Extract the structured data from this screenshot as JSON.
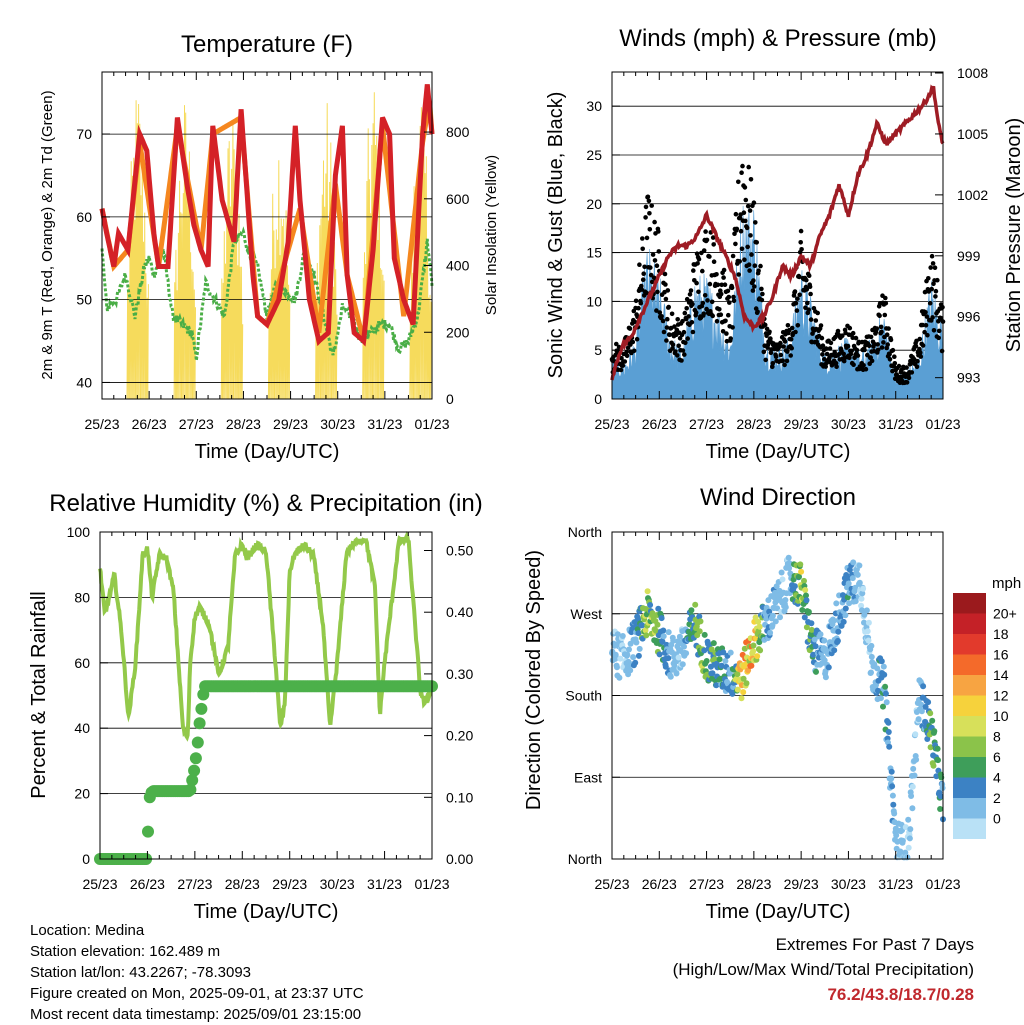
{
  "info": {
    "location": "Location: Medina",
    "elevation": "Station elevation: 162.489 m",
    "latlon": "Station lat/lon: 43.2267; -78.3093",
    "created": "Figure created on Mon, 2025-09-01, at 23:37 UTC",
    "recent": "Most recent data timestamp: 2025/09/01 23:15:00"
  },
  "extremes": {
    "title": "Extremes For Past 7 Days",
    "subtitle": "(High/Low/Max Wind/Total Precipitation)",
    "values": "76.2/43.8/18.7/0.28"
  },
  "colors": {
    "red": "#d42127",
    "orange": "#f5871f",
    "green": "#4aae46",
    "yellow": "#f6db5c",
    "blue": "#5a9fd4",
    "black": "#000000",
    "maroon": "#9e1c24",
    "rh_green": "#93c94a",
    "precip_green": "#4cb04a"
  },
  "chart_data": [
    {
      "type": "line",
      "title": "Temperature (F)",
      "xlabel": "Time (Day/UTC)",
      "ylabel": "2m & 9m T (Red, Orange) & 2m Td (Green)",
      "y2label": "Solar Insolation (Yellow)",
      "x_ticks": [
        "25/23",
        "26/23",
        "27/23",
        "28/23",
        "29/23",
        "30/23",
        "31/23",
        "01/23"
      ],
      "ylim": [
        38,
        77.5
      ],
      "y_ticks": [
        40,
        50,
        60,
        70
      ],
      "y2lim": [
        0,
        980
      ],
      "y2_ticks": [
        0,
        200,
        400,
        600,
        800
      ],
      "grid": true,
      "series": [
        {
          "name": "2m T",
          "color": "red",
          "x": [
            0,
            0.1,
            0.25,
            0.35,
            0.55,
            0.8,
            0.95,
            1.1,
            1.2,
            1.4,
            1.6,
            1.8,
            1.95,
            2.1,
            2.25,
            2.35,
            2.55,
            2.8,
            2.95,
            3.1,
            3.2,
            3.3,
            3.5,
            3.75,
            3.95,
            4.1,
            4.2,
            4.4,
            4.6,
            4.8,
            4.95,
            5.1,
            5.2,
            5.35,
            5.55,
            5.75,
            5.95,
            6.1,
            6.2,
            6.4,
            6.6,
            6.8,
            6.9,
            6.95,
            7.0
          ],
          "values": [
            61,
            58,
            54,
            58,
            56,
            70,
            68,
            58,
            54,
            54,
            72,
            64,
            59,
            56,
            54,
            71,
            62,
            57,
            73,
            61,
            53,
            48,
            47,
            50,
            57,
            71,
            62,
            50,
            45,
            46,
            65,
            71,
            53,
            46,
            45,
            56,
            72,
            70,
            55,
            50,
            47,
            70,
            76,
            73,
            70
          ]
        },
        {
          "name": "9m T",
          "color": "orange",
          "x": [
            0,
            0.25,
            0.55,
            0.8,
            1.2,
            1.6,
            2.1,
            2.35,
            2.95,
            3.3,
            3.5,
            3.95,
            4.2,
            4.6,
            4.95,
            5.2,
            5.55,
            5.95,
            6.4,
            6.8,
            6.95,
            7.0
          ],
          "values": [
            61,
            54,
            56,
            69,
            54,
            71,
            56,
            70,
            72,
            48,
            47,
            56,
            61,
            46,
            64,
            53,
            45,
            71,
            48,
            69,
            74,
            70
          ]
        },
        {
          "name": "2m Td",
          "color": "green",
          "x": [
            0,
            0.1,
            0.3,
            0.5,
            0.7,
            0.9,
            1.0,
            1.1,
            1.3,
            1.5,
            1.7,
            1.9,
            2.0,
            2.2,
            2.4,
            2.6,
            2.8,
            3.0,
            3.1,
            3.3,
            3.5,
            3.7,
            3.9,
            4.1,
            4.3,
            4.5,
            4.7,
            4.9,
            5.1,
            5.3,
            5.5,
            5.7,
            5.9,
            6.1,
            6.3,
            6.5,
            6.7,
            6.9,
            7.0
          ],
          "values": [
            56,
            49,
            50,
            53,
            48,
            54,
            55,
            53,
            56,
            48,
            47,
            46,
            43,
            52,
            50,
            48,
            57,
            58,
            56,
            54,
            48,
            52,
            51,
            50,
            56,
            53,
            48,
            43,
            49,
            48,
            45,
            46,
            47,
            47,
            44,
            45,
            48,
            57,
            52
          ]
        },
        {
          "name": "Solar Insolation",
          "color": "yellow",
          "axis": "y2",
          "peaks": [
            {
              "day": 0.75,
              "value": 970
            },
            {
              "day": 1.75,
              "value": 920
            },
            {
              "day": 2.75,
              "value": 900
            },
            {
              "day": 3.75,
              "value": 860
            },
            {
              "day": 4.75,
              "value": 910
            },
            {
              "day": 5.75,
              "value": 990
            },
            {
              "day": 6.75,
              "value": 960
            }
          ]
        }
      ]
    },
    {
      "type": "scatter",
      "title": "Winds (mph) & Pressure (mb)",
      "xlabel": "Time (Day/UTC)",
      "ylabel": "Sonic Wind & Gust (Blue, Black)",
      "y2label": "Station Pressure (Maroon)",
      "x_ticks": [
        "25/23",
        "26/23",
        "27/23",
        "28/23",
        "29/23",
        "30/23",
        "31/23",
        "01/23"
      ],
      "ylim": [
        0,
        33.5
      ],
      "y_ticks": [
        0,
        5,
        10,
        15,
        20,
        25,
        30
      ],
      "y2lim": [
        991.95,
        1008.05
      ],
      "y2_ticks": [
        993,
        996,
        999,
        1002,
        1005,
        1008
      ],
      "grid": true,
      "series": [
        {
          "name": "Sonic Wind",
          "color": "blue",
          "x": [
            0,
            0.25,
            0.5,
            0.75,
            1.0,
            1.25,
            1.5,
            1.75,
            2.0,
            2.25,
            2.5,
            2.75,
            3.0,
            3.25,
            3.5,
            3.75,
            4.0,
            4.25,
            4.5,
            4.75,
            5.0,
            5.25,
            5.5,
            5.75,
            6.0,
            6.25,
            6.5,
            6.75,
            7.0
          ],
          "values": [
            3,
            2.5,
            4,
            10,
            8,
            4,
            3.5,
            8,
            8,
            6,
            4,
            13,
            13,
            4,
            3.5,
            4,
            9,
            6,
            3,
            3.5,
            4,
            3,
            4,
            6,
            1.5,
            2,
            3,
            8,
            5
          ]
        },
        {
          "name": "Gust",
          "color": "black",
          "x": [
            0,
            0.25,
            0.5,
            0.75,
            1.0,
            1.25,
            1.5,
            1.75,
            2.0,
            2.25,
            2.5,
            2.75,
            3.0,
            3.25,
            3.5,
            3.75,
            4.0,
            4.25,
            4.5,
            4.75,
            5.0,
            5.25,
            5.5,
            5.75,
            6.0,
            6.25,
            6.5,
            6.75,
            7.0
          ],
          "values": [
            5,
            5,
            9,
            19,
            15,
            8,
            7,
            13,
            16,
            14,
            9,
            25,
            18,
            7,
            5,
            7,
            15,
            10,
            5,
            6,
            7,
            5,
            6,
            10,
            3,
            3,
            6,
            14,
            8
          ]
        },
        {
          "name": "Station Pressure",
          "color": "maroon",
          "axis": "y2",
          "x": [
            0,
            0.2,
            0.4,
            0.6,
            0.8,
            1.0,
            1.2,
            1.4,
            1.6,
            1.8,
            2.0,
            2.2,
            2.4,
            2.6,
            2.8,
            3.0,
            3.2,
            3.4,
            3.6,
            3.8,
            4.0,
            4.2,
            4.4,
            4.6,
            4.8,
            5.0,
            5.2,
            5.4,
            5.6,
            5.8,
            6.0,
            6.2,
            6.4,
            6.6,
            6.8,
            6.9,
            7.0
          ],
          "values": [
            993,
            994.5,
            995,
            996,
            997,
            998,
            999,
            999.5,
            999.5,
            1000,
            1001,
            1000,
            999,
            998,
            996,
            995.5,
            996,
            997,
            998.5,
            998,
            999,
            998.5,
            1000,
            1001,
            1002.5,
            1001,
            1003,
            1004,
            1005.5,
            1004.5,
            1005,
            1005.5,
            1006,
            1006.5,
            1007.3,
            1005.5,
            1004.5
          ]
        }
      ]
    },
    {
      "type": "line",
      "title": "Relative Humidity (%) & Precipitation (in)",
      "xlabel": "Time (Day/UTC)",
      "ylabel": "Percent & Total Rainfall",
      "x_ticks": [
        "25/23",
        "26/23",
        "27/23",
        "28/23",
        "29/23",
        "30/23",
        "31/23",
        "01/23"
      ],
      "ylim": [
        0,
        100
      ],
      "y_ticks": [
        0,
        20,
        40,
        60,
        80,
        100
      ],
      "y2lim": [
        0,
        0.53
      ],
      "y2_ticks": [
        "0.00",
        "0.10",
        "0.20",
        "0.30",
        "0.40",
        "0.50"
      ],
      "grid": true,
      "series": [
        {
          "name": "Relative Humidity",
          "color": "rh_green",
          "x": [
            0,
            0.1,
            0.2,
            0.3,
            0.45,
            0.6,
            0.75,
            0.9,
            1.0,
            1.1,
            1.25,
            1.4,
            1.55,
            1.75,
            1.85,
            1.9,
            2.0,
            2.1,
            2.3,
            2.5,
            2.7,
            2.85,
            3.0,
            3.1,
            3.3,
            3.5,
            3.7,
            3.8,
            3.9,
            4.0,
            4.1,
            4.3,
            4.5,
            4.7,
            4.85,
            5.0,
            5.2,
            5.4,
            5.6,
            5.8,
            5.9,
            6.0,
            6.3,
            6.5,
            6.75,
            6.85,
            7.0
          ],
          "values": [
            89,
            75,
            80,
            87,
            70,
            43,
            60,
            93,
            95,
            80,
            93,
            92,
            82,
            40,
            37,
            60,
            74,
            77,
            72,
            56,
            65,
            93,
            96,
            92,
            96,
            94,
            60,
            40,
            48,
            88,
            93,
            96,
            93,
            72,
            40,
            60,
            94,
            97,
            98,
            83,
            44,
            60,
            97,
            98,
            52,
            47,
            53
          ]
        },
        {
          "name": "Total Precipitation",
          "color": "precip_green",
          "axis": "y2",
          "x": [
            0,
            1.0,
            1.02,
            1.05,
            1.1,
            1.5,
            1.9,
            2.0,
            2.05,
            2.1,
            2.15,
            2.2,
            7.0
          ],
          "values": [
            0,
            0,
            0.08,
            0.1,
            0.11,
            0.11,
            0.11,
            0.15,
            0.18,
            0.22,
            0.25,
            0.28,
            0.28
          ]
        }
      ]
    },
    {
      "type": "scatter",
      "title": "Wind Direction",
      "xlabel": "Time (Day/UTC)",
      "ylabel": "Direction (Colored By Speed)",
      "x_ticks": [
        "25/23",
        "26/23",
        "27/23",
        "28/23",
        "29/23",
        "30/23",
        "31/23",
        "01/23"
      ],
      "y_ticks": [
        "North",
        "East",
        "South",
        "West",
        "North"
      ],
      "ylim": [
        0,
        360
      ],
      "colorbar_label": "mph",
      "colorbar_ticks": [
        "20+",
        "18",
        "16",
        "14",
        "12",
        "10",
        "8",
        "6",
        "4",
        "2",
        "0"
      ],
      "colorbar_colors": [
        "#9b1a1d",
        "#c42127",
        "#e23a2c",
        "#f46a2a",
        "#f7a442",
        "#f6d23c",
        "#d7e05a",
        "#8bc34a",
        "#3e9e5a",
        "#3c82c4",
        "#7fbce6",
        "#b9e1f6"
      ],
      "grid": true,
      "series": [
        {
          "name": "Wind Direction",
          "x": [
            0,
            0.25,
            0.5,
            0.75,
            1.0,
            1.25,
            1.5,
            1.75,
            2.0,
            2.25,
            2.5,
            2.75,
            3.0,
            3.25,
            3.5,
            3.75,
            4.0,
            4.25,
            4.5,
            4.75,
            5.0,
            5.25,
            5.5,
            5.75,
            6.0,
            6.25,
            6.5,
            6.75,
            7.0
          ],
          "values": [
            230,
            220,
            240,
            270,
            250,
            220,
            230,
            260,
            220,
            210,
            205,
            200,
            240,
            260,
            280,
            310,
            300,
            230,
            220,
            260,
            300,
            310,
            210,
            190,
            20,
            10,
            180,
            140,
            60
          ],
          "speeds": [
            3,
            2,
            4,
            9,
            8,
            3,
            3,
            8,
            8,
            6,
            4,
            14,
            13,
            4,
            3,
            3,
            10,
            6,
            3,
            4,
            5,
            2,
            3,
            6,
            3,
            2,
            3,
            8,
            5
          ]
        }
      ]
    }
  ]
}
